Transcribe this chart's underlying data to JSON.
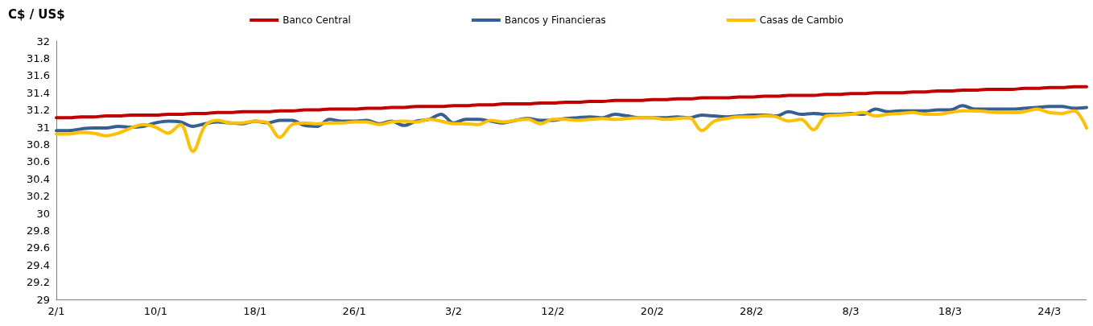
{
  "chart_data": {
    "type": "line",
    "ylabel": "C$ / US$",
    "categories": [
      "2/1",
      null,
      null,
      null,
      null,
      null,
      null,
      null,
      "10/1",
      null,
      null,
      null,
      null,
      null,
      null,
      null,
      "18/1",
      null,
      null,
      null,
      null,
      null,
      null,
      null,
      "26/1",
      null,
      null,
      null,
      null,
      null,
      null,
      null,
      "3/2",
      null,
      null,
      null,
      null,
      null,
      null,
      null,
      "12/2",
      null,
      null,
      null,
      null,
      null,
      null,
      null,
      "20/2",
      null,
      null,
      null,
      null,
      null,
      null,
      null,
      "28/2",
      null,
      null,
      null,
      null,
      null,
      null,
      null,
      "8/3",
      null,
      null,
      null,
      null,
      null,
      null,
      null,
      "18/3",
      null,
      null,
      null,
      null,
      null,
      null,
      null,
      "24/3",
      null,
      null,
      null
    ],
    "series": [
      {
        "name": "Banco Central",
        "color": "#c00000",
        "values": [
          31.11,
          31.11,
          31.12,
          31.12,
          31.13,
          31.13,
          31.14,
          31.14,
          31.14,
          31.15,
          31.15,
          31.16,
          31.16,
          31.17,
          31.17,
          31.18,
          31.18,
          31.18,
          31.19,
          31.19,
          31.2,
          31.2,
          31.21,
          31.21,
          31.21,
          31.22,
          31.22,
          31.23,
          31.23,
          31.24,
          31.24,
          31.24,
          31.25,
          31.25,
          31.26,
          31.26,
          31.27,
          31.27,
          31.27,
          31.28,
          31.28,
          31.29,
          31.29,
          31.3,
          31.3,
          31.31,
          31.31,
          31.31,
          31.32,
          31.32,
          31.33,
          31.33,
          31.34,
          31.34,
          31.34,
          31.35,
          31.35,
          31.36,
          31.36,
          31.37,
          31.37,
          31.37,
          31.38,
          31.38,
          31.39,
          31.39,
          31.4,
          31.4,
          31.4,
          31.41,
          31.41,
          31.42,
          31.42,
          31.43,
          31.43,
          31.44,
          31.44,
          31.44,
          31.45,
          31.45,
          31.46,
          31.46,
          31.47,
          31.47
        ]
      },
      {
        "name": "Bancos y Financieras",
        "color": "#376092",
        "values": [
          30.96,
          30.96,
          30.98,
          30.99,
          30.99,
          31.01,
          31.0,
          31.01,
          31.05,
          31.07,
          31.06,
          31.01,
          31.04,
          31.06,
          31.05,
          31.04,
          31.07,
          31.05,
          31.08,
          31.08,
          31.02,
          31.01,
          31.09,
          31.07,
          31.07,
          31.08,
          31.04,
          31.07,
          31.02,
          31.07,
          31.09,
          31.15,
          31.05,
          31.09,
          31.09,
          31.07,
          31.05,
          31.08,
          31.1,
          31.08,
          31.08,
          31.1,
          31.11,
          31.12,
          31.11,
          31.15,
          31.13,
          31.11,
          31.11,
          31.11,
          31.12,
          31.11,
          31.14,
          31.13,
          31.12,
          31.13,
          31.14,
          31.14,
          31.13,
          31.18,
          31.15,
          31.16,
          31.15,
          31.15,
          31.16,
          31.15,
          31.21,
          31.18,
          31.19,
          31.19,
          31.19,
          31.2,
          31.2,
          31.25,
          31.21,
          31.21,
          31.21,
          31.21,
          31.22,
          31.23,
          31.24,
          31.24,
          31.22,
          31.23
        ]
      },
      {
        "name": "Casas de Cambio",
        "color": "#ffc000",
        "values": [
          30.92,
          30.92,
          30.94,
          30.93,
          30.9,
          30.93,
          30.99,
          31.03,
          31.0,
          30.93,
          31.03,
          30.72,
          31.02,
          31.08,
          31.05,
          31.05,
          31.07,
          31.05,
          30.88,
          31.03,
          31.05,
          31.04,
          31.05,
          31.05,
          31.06,
          31.06,
          31.03,
          31.06,
          31.07,
          31.06,
          31.09,
          31.07,
          31.04,
          31.04,
          31.03,
          31.08,
          31.06,
          31.08,
          31.09,
          31.04,
          31.09,
          31.09,
          31.08,
          31.09,
          31.1,
          31.09,
          31.1,
          31.11,
          31.11,
          31.09,
          31.1,
          31.11,
          30.96,
          31.07,
          31.1,
          31.12,
          31.12,
          31.13,
          31.12,
          31.07,
          31.09,
          30.97,
          31.13,
          31.14,
          31.15,
          31.17,
          31.13,
          31.15,
          31.16,
          31.17,
          31.15,
          31.15,
          31.17,
          31.19,
          31.19,
          31.18,
          31.17,
          31.17,
          31.18,
          31.21,
          31.17,
          31.16,
          31.19,
          30.99
        ]
      }
    ],
    "ylim": [
      29,
      32
    ],
    "yticks": [
      29,
      29.2,
      29.4,
      29.6,
      29.8,
      30,
      30.2,
      30.4,
      30.6,
      30.8,
      31,
      31.2,
      31.4,
      31.6,
      31.8,
      32
    ],
    "grid": false,
    "legend": "top",
    "marker": "none",
    "line_style": "solid"
  }
}
